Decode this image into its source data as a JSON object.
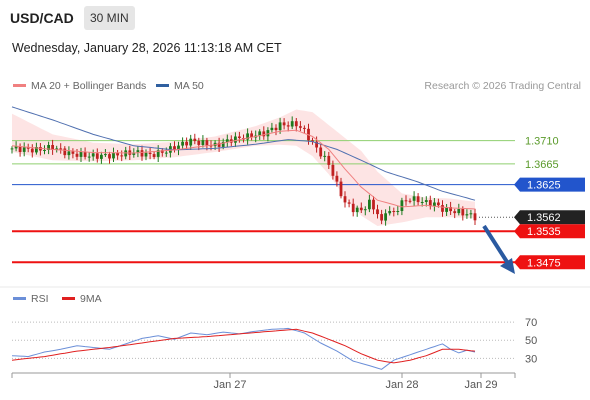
{
  "header": {
    "pair": "USD/CAD",
    "timeframe": "30 MIN"
  },
  "timestamp": "Wednesday, January 28, 2026 11:13:18 AM CET",
  "legend": {
    "main": [
      {
        "label": "MA 20 + Bollinger Bands",
        "color": "#f08080"
      },
      {
        "label": "MA 50",
        "color": "#3060a0"
      }
    ],
    "indicator": [
      {
        "label": "RSI",
        "color": "#6b8fd8"
      },
      {
        "label": "9MA",
        "color": "#e02020"
      }
    ]
  },
  "credit": "Research © 2026 Trading Central",
  "colors": {
    "up": "#1e7a1e",
    "down": "#c02020",
    "resistance": "#2255cc",
    "support": "#ee1111",
    "green_level": "#8fcf6f",
    "band_fill": "#fde4e4"
  },
  "chart_data": [
    {
      "type": "candlestick",
      "title": "USD/CAD 30 MIN",
      "x_ticks": [
        "Jan 27",
        "Jan 28",
        "Jan 29"
      ],
      "ylim": [
        1.3435,
        1.38
      ],
      "price_labels": [
        {
          "value": 1.371,
          "label": "1.3710",
          "style": "green_text"
        },
        {
          "value": 1.3665,
          "label": "1.3665",
          "style": "green_text"
        },
        {
          "value": 1.3625,
          "label": "1.3625",
          "style": "blue_box"
        },
        {
          "value": 1.3562,
          "label": "1.3562",
          "style": "dark_box"
        },
        {
          "value": 1.3535,
          "label": "1.3535",
          "style": "red_box"
        },
        {
          "value": 1.3475,
          "label": "1.3475",
          "style": "red_box"
        }
      ],
      "levels": [
        {
          "value": 1.371,
          "kind": "green"
        },
        {
          "value": 1.3665,
          "kind": "green"
        },
        {
          "value": 1.3625,
          "kind": "resistance"
        },
        {
          "value": 1.3535,
          "kind": "support"
        },
        {
          "value": 1.3475,
          "kind": "support"
        }
      ],
      "close_anchors": [
        [
          0,
          1.3695
        ],
        [
          6,
          1.3692
        ],
        [
          10,
          1.3697
        ],
        [
          14,
          1.3685
        ],
        [
          20,
          1.368
        ],
        [
          26,
          1.3682
        ],
        [
          30,
          1.3688
        ],
        [
          34,
          1.3682
        ],
        [
          38,
          1.369
        ],
        [
          44,
          1.371
        ],
        [
          50,
          1.37
        ],
        [
          54,
          1.3712
        ],
        [
          58,
          1.3718
        ],
        [
          62,
          1.3724
        ],
        [
          66,
          1.374
        ],
        [
          70,
          1.3742
        ],
        [
          72,
          1.3728
        ],
        [
          74,
          1.3705
        ],
        [
          76,
          1.3685
        ],
        [
          78,
          1.3665
        ],
        [
          80,
          1.3625
        ],
        [
          82,
          1.359
        ],
        [
          84,
          1.3578
        ],
        [
          86,
          1.3575
        ],
        [
          88,
          1.359
        ],
        [
          90,
          1.357
        ],
        [
          91,
          1.355
        ],
        [
          92,
          1.3575
        ],
        [
          94,
          1.357
        ],
        [
          96,
          1.359
        ],
        [
          98,
          1.3598
        ],
        [
          100,
          1.3595
        ],
        [
          102,
          1.359
        ],
        [
          104,
          1.3588
        ],
        [
          106,
          1.3578
        ],
        [
          108,
          1.3575
        ],
        [
          110,
          1.3572
        ],
        [
          112,
          1.3568
        ],
        [
          114,
          1.3562
        ]
      ],
      "ma20_anchors": [
        [
          0,
          1.37
        ],
        [
          10,
          1.3693
        ],
        [
          20,
          1.3687
        ],
        [
          30,
          1.3686
        ],
        [
          40,
          1.3692
        ],
        [
          50,
          1.3702
        ],
        [
          60,
          1.3718
        ],
        [
          66,
          1.3728
        ],
        [
          70,
          1.373
        ],
        [
          74,
          1.3718
        ],
        [
          78,
          1.3693
        ],
        [
          82,
          1.3655
        ],
        [
          86,
          1.362
        ],
        [
          90,
          1.3595
        ],
        [
          96,
          1.3582
        ],
        [
          102,
          1.3585
        ],
        [
          108,
          1.358
        ],
        [
          114,
          1.3578
        ]
      ],
      "ma50_anchors": [
        [
          0,
          1.3775
        ],
        [
          10,
          1.375
        ],
        [
          20,
          1.3722
        ],
        [
          30,
          1.37
        ],
        [
          40,
          1.3692
        ],
        [
          50,
          1.3695
        ],
        [
          60,
          1.3703
        ],
        [
          68,
          1.3712
        ],
        [
          74,
          1.3708
        ],
        [
          80,
          1.3693
        ],
        [
          86,
          1.3672
        ],
        [
          92,
          1.365
        ],
        [
          100,
          1.363
        ],
        [
          106,
          1.3612
        ],
        [
          114,
          1.3595
        ]
      ],
      "bb_upper_anchors": [
        [
          0,
          1.3762
        ],
        [
          10,
          1.3722
        ],
        [
          20,
          1.3706
        ],
        [
          30,
          1.3703
        ],
        [
          40,
          1.3708
        ],
        [
          50,
          1.3718
        ],
        [
          60,
          1.3738
        ],
        [
          66,
          1.3755
        ],
        [
          70,
          1.377
        ],
        [
          74,
          1.3765
        ],
        [
          78,
          1.374
        ],
        [
          82,
          1.3715
        ],
        [
          86,
          1.369
        ],
        [
          90,
          1.365
        ],
        [
          96,
          1.3608
        ],
        [
          102,
          1.36
        ],
        [
          108,
          1.3598
        ],
        [
          114,
          1.3592
        ]
      ],
      "bb_lower_anchors": [
        [
          0,
          1.3688
        ],
        [
          10,
          1.3672
        ],
        [
          20,
          1.367
        ],
        [
          30,
          1.3672
        ],
        [
          40,
          1.3678
        ],
        [
          50,
          1.3688
        ],
        [
          60,
          1.37
        ],
        [
          66,
          1.3702
        ],
        [
          70,
          1.37
        ],
        [
          74,
          1.368
        ],
        [
          78,
          1.3645
        ],
        [
          82,
          1.36
        ],
        [
          86,
          1.3565
        ],
        [
          90,
          1.3545
        ],
        [
          96,
          1.3552
        ],
        [
          102,
          1.3562
        ],
        [
          108,
          1.3562
        ],
        [
          114,
          1.356
        ]
      ]
    },
    {
      "type": "line",
      "title": "RSI",
      "ylim": [
        15,
        80
      ],
      "y_ticks": [
        30,
        50,
        70
      ],
      "series": [
        {
          "name": "RSI",
          "anchors": [
            [
              0,
              33
            ],
            [
              4,
              32
            ],
            [
              8,
              37
            ],
            [
              12,
              40
            ],
            [
              16,
              44
            ],
            [
              20,
              42
            ],
            [
              24,
              40
            ],
            [
              28,
              46
            ],
            [
              32,
              52
            ],
            [
              36,
              55
            ],
            [
              40,
              51
            ],
            [
              44,
              58
            ],
            [
              48,
              56
            ],
            [
              52,
              59
            ],
            [
              56,
              57
            ],
            [
              60,
              60
            ],
            [
              64,
              62
            ],
            [
              68,
              63
            ],
            [
              72,
              58
            ],
            [
              76,
              47
            ],
            [
              80,
              38
            ],
            [
              84,
              27
            ],
            [
              88,
              22
            ],
            [
              91,
              18
            ],
            [
              94,
              28
            ],
            [
              98,
              34
            ],
            [
              102,
              40
            ],
            [
              106,
              46
            ],
            [
              108,
              40
            ],
            [
              110,
              36
            ],
            [
              112,
              39
            ],
            [
              114,
              37
            ]
          ]
        },
        {
          "name": "9MA",
          "anchors": [
            [
              0,
              28
            ],
            [
              8,
              32
            ],
            [
              16,
              38
            ],
            [
              24,
              42
            ],
            [
              32,
              47
            ],
            [
              40,
              52
            ],
            [
              48,
              54
            ],
            [
              56,
              57
            ],
            [
              64,
              60
            ],
            [
              70,
              62
            ],
            [
              74,
              58
            ],
            [
              78,
              51
            ],
            [
              82,
              44
            ],
            [
              86,
              35
            ],
            [
              90,
              28
            ],
            [
              94,
              25
            ],
            [
              98,
              28
            ],
            [
              102,
              33
            ],
            [
              106,
              40
            ],
            [
              110,
              40
            ],
            [
              114,
              38
            ]
          ]
        }
      ]
    }
  ]
}
